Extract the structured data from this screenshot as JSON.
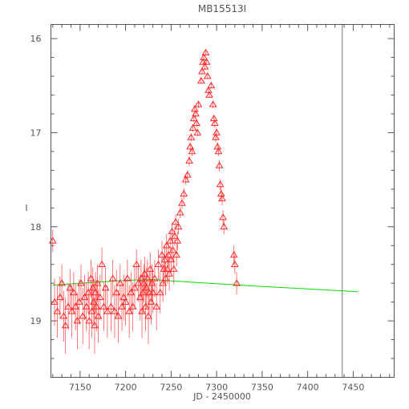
{
  "chart_data": {
    "type": "scatter",
    "title": "MB15513I",
    "xlabel": "JD - 2450000",
    "ylabel": "I",
    "xlim": [
      7118,
      7495
    ],
    "ylim": [
      19.6,
      15.85
    ],
    "y_inverted": true,
    "x_ticks": [
      "7150",
      "7200",
      "7250",
      "7300",
      "7350",
      "7400",
      "7450"
    ],
    "y_ticks": [
      "16",
      "17",
      "18",
      "19"
    ],
    "grid": false,
    "vertical_line_x": 7438,
    "colors": {
      "points": "#ff2a2a",
      "model": "#00dd00",
      "axes": "#555555"
    },
    "model_curve": {
      "x": [
        7120,
        7150,
        7200,
        7230,
        7250,
        7300,
        7350,
        7400,
        7455
      ],
      "y": [
        18.62,
        18.6,
        18.57,
        18.56,
        18.575,
        18.605,
        18.635,
        18.66,
        18.69
      ]
    },
    "series": [
      {
        "marker": "open-triangle",
        "x": [
          7120,
          7122,
          7125,
          7128,
          7130,
          7132,
          7134,
          7137,
          7139,
          7141,
          7143,
          7145,
          7147,
          7149,
          7151,
          7153,
          7155,
          7157,
          7159,
          7160,
          7162,
          7163,
          7164,
          7165,
          7166,
          7167,
          7168,
          7169,
          7170,
          7172,
          7174,
          7176,
          7178,
          7180,
          7184,
          7186,
          7188,
          7190,
          7192,
          7194,
          7196,
          7198,
          7200,
          7202,
          7204,
          7206,
          7208,
          7210,
          7212,
          7214,
          7216,
          7217,
          7218,
          7219,
          7220,
          7221,
          7222,
          7223,
          7224,
          7225,
          7226,
          7227,
          7228,
          7229,
          7230,
          7232,
          7234,
          7236,
          7238,
          7240,
          7241,
          7242,
          7243,
          7244,
          7245,
          7246,
          7247,
          7248,
          7249,
          7250,
          7251,
          7252,
          7253,
          7254,
          7255,
          7256,
          7257,
          7258,
          7260,
          7262,
          7264,
          7266,
          7268,
          7270,
          7271,
          7272,
          7273,
          7274,
          7275,
          7276,
          7277,
          7278,
          7279,
          7280,
          7283,
          7284,
          7285,
          7286,
          7287,
          7288,
          7289,
          7290,
          7291,
          7292,
          7294,
          7296,
          7297,
          7298,
          7299,
          7300,
          7301,
          7302,
          7303,
          7304,
          7305,
          7306,
          7307,
          7308,
          7319,
          7320,
          7322
        ],
        "y": [
          18.15,
          18.8,
          18.9,
          18.75,
          18.6,
          18.95,
          19.05,
          18.85,
          18.65,
          18.9,
          18.7,
          18.85,
          19.0,
          18.8,
          18.6,
          18.95,
          18.75,
          18.85,
          18.7,
          19.0,
          18.55,
          18.9,
          18.65,
          18.8,
          19.05,
          18.7,
          18.85,
          18.6,
          18.95,
          18.75,
          18.4,
          18.85,
          18.65,
          18.9,
          18.85,
          18.55,
          18.9,
          18.7,
          18.95,
          18.6,
          18.85,
          18.75,
          18.8,
          18.55,
          18.9,
          18.7,
          18.85,
          18.65,
          18.4,
          18.6,
          18.75,
          18.55,
          18.9,
          18.7,
          18.6,
          18.5,
          18.85,
          18.65,
          18.55,
          18.95,
          18.7,
          18.45,
          18.8,
          18.6,
          18.7,
          18.55,
          18.85,
          18.4,
          18.7,
          18.3,
          18.6,
          18.45,
          18.35,
          18.55,
          18.2,
          18.45,
          18.3,
          18.5,
          18.15,
          18.35,
          18.05,
          18.25,
          18.45,
          18.1,
          17.95,
          18.3,
          18.15,
          18.0,
          17.85,
          17.75,
          17.65,
          17.5,
          17.45,
          17.3,
          17.15,
          17.05,
          17.2,
          16.95,
          16.85,
          16.75,
          16.8,
          16.9,
          17.0,
          16.7,
          16.45,
          16.35,
          16.25,
          16.2,
          16.3,
          16.15,
          16.25,
          16.4,
          16.55,
          16.6,
          16.5,
          16.7,
          16.85,
          16.9,
          17.05,
          17.0,
          17.15,
          17.2,
          17.35,
          17.55,
          17.65,
          17.7,
          17.9,
          18.0,
          18.3,
          18.4,
          18.6
        ],
        "err": [
          0.12,
          0.25,
          0.28,
          0.22,
          0.2,
          0.27,
          0.3,
          0.25,
          0.2,
          0.28,
          0.22,
          0.25,
          0.3,
          0.24,
          0.2,
          0.3,
          0.24,
          0.26,
          0.22,
          0.3,
          0.2,
          0.28,
          0.22,
          0.25,
          0.3,
          0.22,
          0.26,
          0.2,
          0.28,
          0.24,
          0.18,
          0.26,
          0.22,
          0.28,
          0.26,
          0.2,
          0.28,
          0.24,
          0.28,
          0.2,
          0.26,
          0.24,
          0.25,
          0.2,
          0.28,
          0.22,
          0.26,
          0.22,
          0.16,
          0.2,
          0.24,
          0.2,
          0.28,
          0.22,
          0.2,
          0.18,
          0.26,
          0.22,
          0.2,
          0.3,
          0.22,
          0.18,
          0.24,
          0.2,
          0.22,
          0.2,
          0.25,
          0.16,
          0.22,
          0.15,
          0.2,
          0.16,
          0.14,
          0.18,
          0.12,
          0.16,
          0.12,
          0.18,
          0.1,
          0.14,
          0.1,
          0.12,
          0.16,
          0.1,
          0.08,
          0.12,
          0.1,
          0.08,
          0.06,
          0.06,
          0.06,
          0.05,
          0.05,
          0.05,
          0.04,
          0.04,
          0.05,
          0.04,
          0.04,
          0.04,
          0.04,
          0.04,
          0.04,
          0.04,
          0.03,
          0.03,
          0.03,
          0.03,
          0.03,
          0.03,
          0.03,
          0.03,
          0.03,
          0.03,
          0.03,
          0.04,
          0.04,
          0.04,
          0.05,
          0.05,
          0.05,
          0.05,
          0.06,
          0.06,
          0.07,
          0.07,
          0.08,
          0.08,
          0.1,
          0.1,
          0.12
        ]
      }
    ]
  }
}
